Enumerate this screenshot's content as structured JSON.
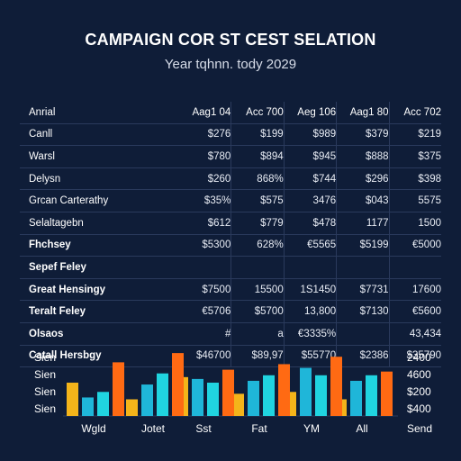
{
  "header": {
    "title": "CAMPAIGN COR ST CEST SELATION",
    "subtitle": "Year tqhnn. tody 2029"
  },
  "table": {
    "corner": "Anrial",
    "columns": [
      "Aag1 04",
      "Acc 700",
      "Aeg 106",
      "Aag1 80",
      "Acc 702"
    ],
    "rows": [
      {
        "label": "Canll",
        "values": [
          "$276",
          "$199",
          "$989",
          "$379",
          "$219"
        ]
      },
      {
        "label": "Warsl",
        "values": [
          "$780",
          "$894",
          "$945",
          "$888",
          "$375"
        ]
      },
      {
        "label": "Delysn",
        "values": [
          "$260",
          "868%",
          "$744",
          "$296",
          "$398"
        ]
      },
      {
        "label": "Grcan Carterathy",
        "values": [
          "$35%",
          "$575",
          "3476",
          "$043",
          "5575"
        ]
      },
      {
        "label": "Selaltagebn",
        "values": [
          "$612",
          "$779",
          "$478",
          "1177",
          "1500"
        ]
      },
      {
        "label": "Fhchsey",
        "values": [
          "$5300",
          "628%",
          "€5565",
          "$5199",
          "€5000"
        ]
      },
      {
        "label": "Sepef Feley",
        "values": [
          "",
          "",
          "",
          "",
          ""
        ]
      },
      {
        "label": "Great Hensingy",
        "values": [
          "$7500",
          "15500",
          "1S1450",
          "$7731",
          "17600"
        ]
      },
      {
        "label": "Teralt Feley",
        "values": [
          "€5706",
          "$5700",
          "13,800",
          "$7130",
          "€5600"
        ]
      },
      {
        "label": "Olsaos",
        "values": [
          "#",
          "a",
          "€3335%",
          "",
          "43,434"
        ]
      },
      {
        "label": "Catall Hersbgy",
        "values": [
          "$46700",
          "$89,97",
          "$55770",
          "$2386",
          "$35790"
        ]
      }
    ]
  },
  "chart_data": {
    "type": "bar",
    "categories": [
      "Wgld",
      "Jotet",
      "Sst",
      "Fat",
      "YM",
      "All"
    ],
    "series": [
      {
        "values": [
          2800,
          1900,
          3100,
          2200,
          2300,
          1900
        ]
      },
      {
        "values": [
          2000,
          2700,
          3000,
          2900,
          3600,
          2900
        ]
      },
      {
        "values": [
          2300,
          3300,
          2800,
          3200,
          3200,
          3200
        ]
      },
      {
        "values": [
          3900,
          4400,
          3500,
          3800,
          4200,
          3400
        ]
      }
    ],
    "colors": [
      "#f4b41a",
      "#1fb6d9",
      "#20d4e0",
      "#ff6a13"
    ],
    "ylim": [
      1000,
      4600
    ],
    "left_tick_labels": [
      "Sien",
      "Sien",
      "Sien",
      "Sien"
    ],
    "right_tick_labels": [
      "2400",
      "4600",
      "$200",
      "$400"
    ],
    "extra_xlabel": "Send"
  }
}
